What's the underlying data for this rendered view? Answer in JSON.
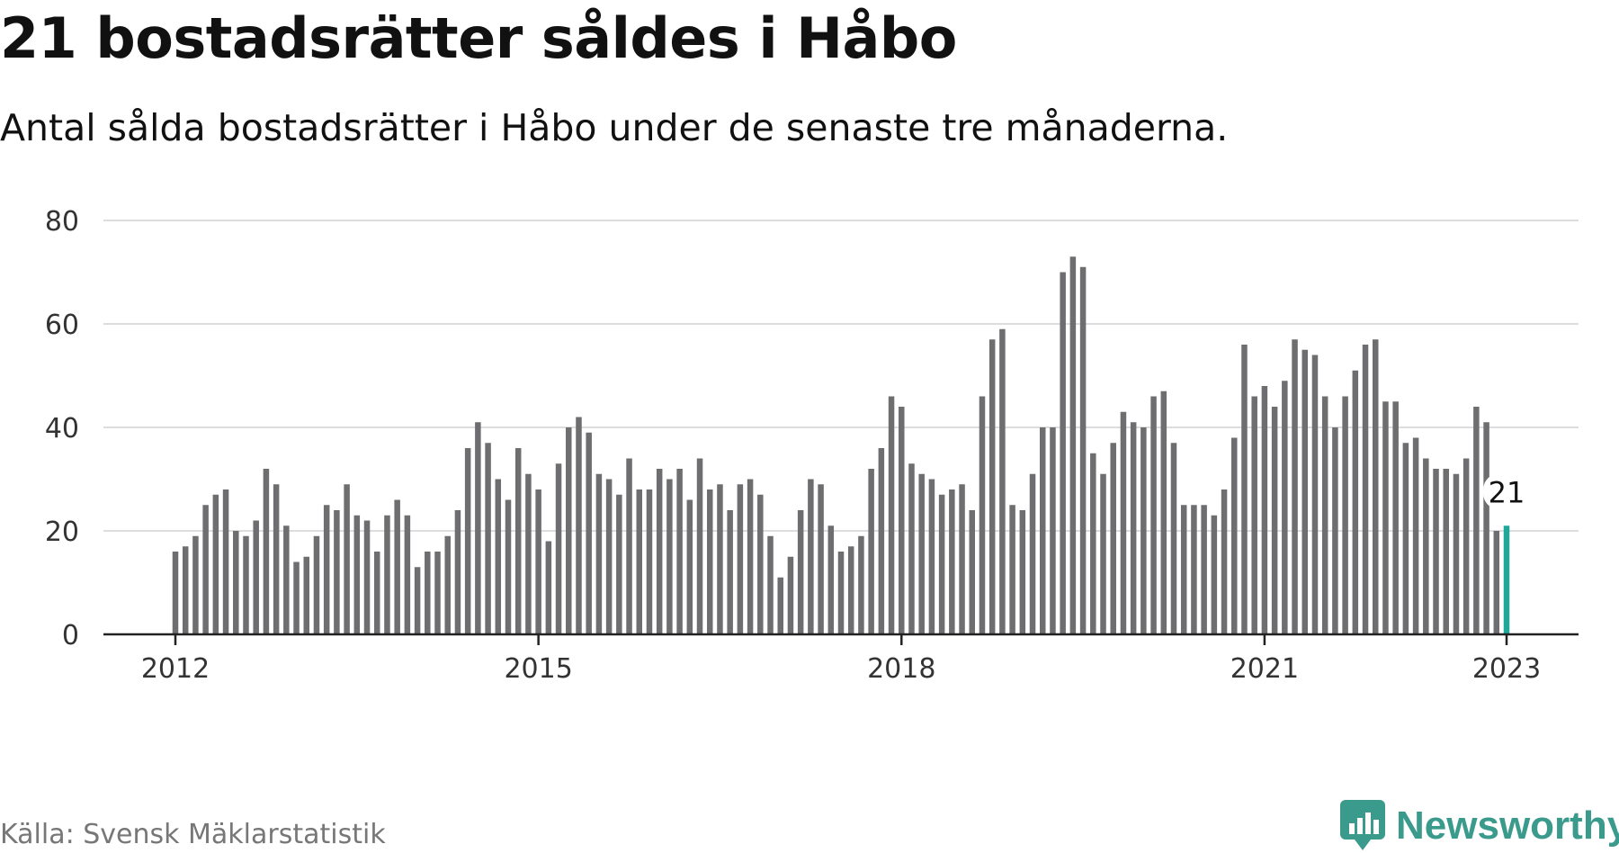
{
  "title": "21 bostadsrätter såldes i Håbo",
  "subtitle": "Antal sålda bostadsrätter i Håbo under de senaste tre månaderna.",
  "source": "Källa: Svensk Mäklarstatistik",
  "brand": {
    "name": "Newsworthy",
    "icon": "newsworthy-logo-icon",
    "color": "#3a9a8c"
  },
  "chart_data": {
    "type": "bar",
    "x_start": "2012-01",
    "x_end": "2023-01",
    "ylim": [
      0,
      80
    ],
    "yticks": [
      0,
      20,
      40,
      60,
      80
    ],
    "xticks": [
      "2012",
      "2015",
      "2018",
      "2021",
      "2023"
    ],
    "grid": true,
    "bar_color": "#6e6e70",
    "highlight_color": "#1fa89a",
    "highlight_label": "21",
    "values": [
      16,
      17,
      19,
      25,
      27,
      28,
      20,
      19,
      22,
      32,
      29,
      21,
      14,
      15,
      19,
      25,
      24,
      29,
      23,
      22,
      16,
      23,
      26,
      23,
      13,
      16,
      16,
      19,
      24,
      36,
      41,
      37,
      30,
      26,
      36,
      31,
      28,
      18,
      33,
      40,
      42,
      39,
      31,
      30,
      27,
      34,
      28,
      28,
      32,
      30,
      32,
      26,
      34,
      28,
      29,
      24,
      29,
      30,
      27,
      19,
      11,
      15,
      24,
      30,
      29,
      21,
      16,
      17,
      19,
      32,
      36,
      46,
      44,
      33,
      31,
      30,
      27,
      28,
      29,
      24,
      46,
      57,
      59,
      25,
      24,
      31,
      40,
      40,
      70,
      73,
      71,
      35,
      31,
      37,
      43,
      41,
      40,
      46,
      47,
      37,
      25,
      25,
      25,
      23,
      28,
      38,
      56,
      46,
      48,
      44,
      49,
      57,
      55,
      54,
      46,
      40,
      46,
      51,
      56,
      57,
      45,
      45,
      37,
      38,
      34,
      32,
      32,
      31,
      34,
      44,
      41,
      20,
      21
    ]
  }
}
